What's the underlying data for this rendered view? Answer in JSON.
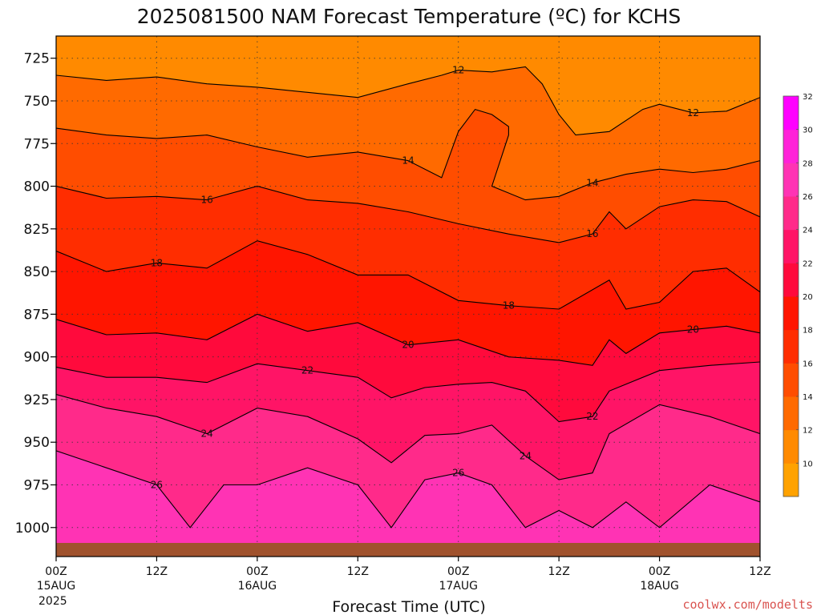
{
  "chart_data": {
    "type": "heatmap",
    "title": "2025081500 NAM Forecast Temperature (ºC) for KCHS",
    "xlabel": "Forecast Time (UTC)",
    "credit": "coolwx.com/modelts",
    "year_label": "2025",
    "x_ticks": [
      {
        "hour": 0,
        "label": "00Z",
        "date": "15AUG"
      },
      {
        "hour": 12,
        "label": "12Z",
        "date": ""
      },
      {
        "hour": 24,
        "label": "00Z",
        "date": "16AUG"
      },
      {
        "hour": 36,
        "label": "12Z",
        "date": ""
      },
      {
        "hour": 48,
        "label": "00Z",
        "date": "17AUG"
      },
      {
        "hour": 60,
        "label": "12Z",
        "date": ""
      },
      {
        "hour": 72,
        "label": "00Z",
        "date": "18AUG"
      },
      {
        "hour": 84,
        "label": "12Z",
        "date": ""
      }
    ],
    "xlim": [
      0,
      84
    ],
    "y_axis": {
      "scale": "linear-reversed",
      "ylim": [
        1017,
        712
      ],
      "ticks": [
        725,
        750,
        775,
        800,
        825,
        850,
        875,
        900,
        925,
        950,
        975,
        1000
      ]
    },
    "grid": true,
    "colorbar": {
      "levels": [
        10,
        12,
        14,
        16,
        18,
        20,
        22,
        24,
        26,
        28,
        30,
        32
      ],
      "colors": [
        "#ffa200",
        "#ff8a00",
        "#ff6a00",
        "#ff4d00",
        "#ff2d00",
        "#ff1500",
        "#ff0a3c",
        "#ff1466",
        "#ff2a8a",
        "#ff33b4",
        "#ff22d8",
        "#ff00ff"
      ]
    },
    "ground_color": "#a0522d",
    "contours": [
      {
        "label": "12",
        "points": [
          [
            0,
            735
          ],
          [
            6,
            738
          ],
          [
            12,
            736
          ],
          [
            18,
            740
          ],
          [
            24,
            742
          ],
          [
            30,
            745
          ],
          [
            36,
            748
          ],
          [
            42,
            740
          ],
          [
            46,
            735
          ],
          [
            48,
            732
          ],
          [
            52,
            733
          ],
          [
            56,
            730
          ],
          [
            58,
            740
          ],
          [
            60,
            758
          ],
          [
            62,
            770
          ],
          [
            66,
            768
          ],
          [
            70,
            755
          ],
          [
            72,
            752
          ],
          [
            76,
            757
          ],
          [
            80,
            756
          ],
          [
            84,
            748
          ]
        ]
      },
      {
        "label": "14",
        "points": [
          [
            0,
            766
          ],
          [
            6,
            770
          ],
          [
            12,
            772
          ],
          [
            18,
            770
          ],
          [
            24,
            777
          ],
          [
            30,
            783
          ],
          [
            36,
            780
          ],
          [
            42,
            785
          ],
          [
            46,
            795
          ],
          [
            48,
            768
          ],
          [
            50,
            755
          ],
          [
            52,
            758
          ],
          [
            54,
            765
          ],
          [
            54,
            770
          ],
          [
            52,
            800
          ],
          [
            56,
            808
          ],
          [
            60,
            806
          ],
          [
            64,
            798
          ],
          [
            68,
            793
          ],
          [
            72,
            790
          ],
          [
            76,
            792
          ],
          [
            80,
            790
          ],
          [
            84,
            785
          ]
        ]
      },
      {
        "label": "16",
        "points": [
          [
            0,
            800
          ],
          [
            6,
            807
          ],
          [
            12,
            806
          ],
          [
            18,
            808
          ],
          [
            24,
            800
          ],
          [
            30,
            808
          ],
          [
            36,
            810
          ],
          [
            42,
            815
          ],
          [
            48,
            822
          ],
          [
            54,
            828
          ],
          [
            60,
            833
          ],
          [
            64,
            828
          ],
          [
            66,
            815
          ],
          [
            68,
            825
          ],
          [
            72,
            812
          ],
          [
            76,
            808
          ],
          [
            80,
            809
          ],
          [
            84,
            818
          ]
        ]
      },
      {
        "label": "18",
        "points": [
          [
            0,
            838
          ],
          [
            6,
            850
          ],
          [
            12,
            845
          ],
          [
            18,
            848
          ],
          [
            24,
            832
          ],
          [
            30,
            840
          ],
          [
            36,
            852
          ],
          [
            42,
            852
          ],
          [
            48,
            867
          ],
          [
            54,
            870
          ],
          [
            60,
            872
          ],
          [
            66,
            855
          ],
          [
            68,
            872
          ],
          [
            72,
            868
          ],
          [
            76,
            850
          ],
          [
            80,
            848
          ],
          [
            84,
            862
          ]
        ]
      },
      {
        "label": "20",
        "points": [
          [
            0,
            878
          ],
          [
            6,
            887
          ],
          [
            12,
            886
          ],
          [
            18,
            890
          ],
          [
            24,
            875
          ],
          [
            30,
            885
          ],
          [
            36,
            880
          ],
          [
            42,
            893
          ],
          [
            48,
            890
          ],
          [
            54,
            900
          ],
          [
            60,
            902
          ],
          [
            64,
            905
          ],
          [
            66,
            890
          ],
          [
            68,
            898
          ],
          [
            72,
            886
          ],
          [
            76,
            884
          ],
          [
            80,
            882
          ],
          [
            84,
            886
          ]
        ]
      },
      {
        "label": "22",
        "points": [
          [
            0,
            906
          ],
          [
            6,
            912
          ],
          [
            12,
            912
          ],
          [
            18,
            915
          ],
          [
            24,
            904
          ],
          [
            30,
            908
          ],
          [
            36,
            912
          ],
          [
            40,
            924
          ],
          [
            44,
            918
          ],
          [
            48,
            916
          ],
          [
            52,
            915
          ],
          [
            56,
            920
          ],
          [
            60,
            938
          ],
          [
            64,
            935
          ],
          [
            66,
            920
          ],
          [
            72,
            908
          ],
          [
            78,
            905
          ],
          [
            84,
            903
          ]
        ]
      },
      {
        "label": "24",
        "points": [
          [
            0,
            922
          ],
          [
            6,
            930
          ],
          [
            12,
            935
          ],
          [
            18,
            945
          ],
          [
            24,
            930
          ],
          [
            30,
            935
          ],
          [
            36,
            948
          ],
          [
            40,
            962
          ],
          [
            44,
            946
          ],
          [
            48,
            945
          ],
          [
            52,
            940
          ],
          [
            56,
            958
          ],
          [
            60,
            972
          ],
          [
            64,
            968
          ],
          [
            66,
            945
          ],
          [
            72,
            928
          ],
          [
            78,
            935
          ],
          [
            84,
            945
          ]
        ]
      },
      {
        "label": "26",
        "points": [
          [
            0,
            955
          ],
          [
            6,
            965
          ],
          [
            12,
            975
          ],
          [
            16,
            1000
          ],
          [
            20,
            975
          ],
          [
            24,
            975
          ],
          [
            30,
            965
          ],
          [
            36,
            975
          ],
          [
            40,
            1000
          ],
          [
            44,
            972
          ],
          [
            48,
            968
          ],
          [
            52,
            975
          ],
          [
            56,
            1000
          ],
          [
            60,
            990
          ],
          [
            64,
            1000
          ],
          [
            68,
            985
          ],
          [
            72,
            1000
          ],
          [
            78,
            975
          ],
          [
            84,
            985
          ]
        ]
      }
    ]
  }
}
